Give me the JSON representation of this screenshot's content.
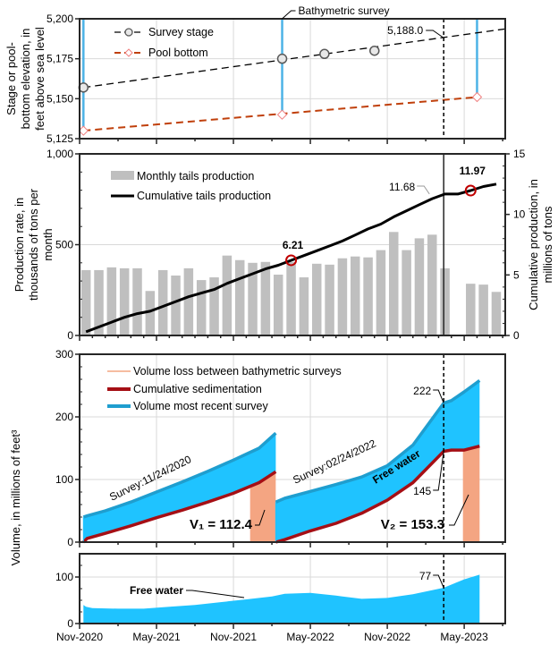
{
  "chart_data": [
    {
      "id": "elevation",
      "type": "scatter",
      "ylabel": "Stage or pool-bottom elevation, in feet above sea level",
      "ylabel_lines": [
        "Stage or pool-",
        "bottom elevation, in",
        "feet above sea level"
      ],
      "ylim": [
        5125,
        5200
      ],
      "yticks": [
        5125,
        5150,
        5175,
        5200
      ],
      "ytick_labels": [
        "5,125",
        "5,150",
        "5,175",
        "5,200"
      ],
      "grid": true,
      "legend": "top-left",
      "series": [
        {
          "name": "Survey stage",
          "color": "#000000",
          "marker": "circle",
          "points": [
            [
              0.3,
              5157
            ],
            [
              15.8,
              5175
            ],
            [
              19.1,
              5178
            ],
            [
              23.0,
              5180
            ]
          ]
        },
        {
          "name": "Pool bottom",
          "color": "#c0400c",
          "marker": "diamond",
          "points": [
            [
              0.3,
              5130
            ],
            [
              15.8,
              5140
            ],
            [
              31.0,
              5151
            ]
          ]
        }
      ],
      "stage_trend": {
        "x": [
          0.3,
          33.5
        ],
        "y": [
          5157,
          5194
        ]
      },
      "pool_trend": {
        "x": [
          0.3,
          31.0
        ],
        "y": [
          5130,
          5151
        ]
      },
      "survey_lines_x": [
        0.3,
        15.8,
        31.0
      ],
      "annotations": [
        {
          "text": "Bathymetric survey",
          "x": 15.8
        },
        {
          "text": "5,188.0",
          "x": 28.4,
          "y": 5188.0
        }
      ],
      "dashed_line_x": 28.4
    },
    {
      "id": "production",
      "type": "bar",
      "ylabel": "Production rate, in thousands of tons per month",
      "ylabel_lines": [
        "Production rate, in",
        "thousands of tons per",
        "month"
      ],
      "y2label": "Cumulative production, in millions of tons",
      "y2label_lines": [
        "Cumulative production, in",
        "millions of tons"
      ],
      "ylim": [
        0,
        1000
      ],
      "yticks": [
        0,
        500,
        1000
      ],
      "ytick_labels": [
        "0",
        "500",
        "1,000"
      ],
      "y2lim": [
        0,
        15
      ],
      "y2ticks": [
        0,
        5,
        10,
        15
      ],
      "y2tick_labels": [
        "0",
        "5",
        "10",
        "15"
      ],
      "legend": "top-left",
      "series": [
        {
          "name": "Monthly tails production",
          "color": "#bfbfbf",
          "x": [
            0,
            1,
            2,
            3,
            4,
            5,
            6,
            7,
            8,
            9,
            10,
            11,
            12,
            13,
            14,
            15,
            16,
            17,
            18,
            19,
            20,
            21,
            22,
            23,
            24,
            25,
            26,
            27,
            28,
            30,
            31,
            32
          ],
          "values": [
            360,
            360,
            375,
            370,
            370,
            245,
            360,
            330,
            370,
            305,
            320,
            440,
            415,
            400,
            405,
            335,
            405,
            320,
            395,
            390,
            425,
            435,
            430,
            470,
            570,
            470,
            535,
            555,
            370,
            285,
            280,
            240
          ]
        },
        {
          "name": "Cumulative tails production",
          "color": "#000000",
          "x": [
            0,
            1,
            2,
            3,
            4,
            5,
            6,
            7,
            8,
            9,
            10,
            11,
            12,
            13,
            14,
            15,
            16,
            17,
            18,
            19,
            20,
            21,
            22,
            23,
            24,
            25,
            26,
            27,
            28,
            29,
            30,
            31,
            32
          ],
          "values": [
            0.3,
            0.7,
            1.1,
            1.5,
            1.8,
            2.0,
            2.4,
            2.8,
            3.2,
            3.5,
            3.8,
            4.3,
            4.7,
            5.1,
            5.5,
            5.8,
            6.21,
            6.6,
            7.0,
            7.4,
            7.8,
            8.3,
            8.8,
            9.2,
            9.8,
            10.3,
            10.8,
            11.3,
            11.68,
            11.68,
            11.97,
            12.3,
            12.5
          ]
        }
      ],
      "annotations": [
        {
          "text": "6.21",
          "x": 16,
          "y": 6.21,
          "bold": true
        },
        {
          "text": "11.68",
          "x": 28.4,
          "y": 11.68,
          "bold": false
        },
        {
          "text": "11.97",
          "x": 30,
          "y": 11.97,
          "bold": true
        }
      ],
      "solid_line_x": 28.4
    },
    {
      "id": "volume",
      "type": "area",
      "ylabel": "Volume, in millions of feet³",
      "ylim": [
        0,
        300
      ],
      "yticks": [
        0,
        100,
        200,
        300
      ],
      "ytick_labels": [
        "0",
        "100",
        "200",
        "300"
      ],
      "legend": "top-left",
      "series": [
        {
          "name": "Volume loss between bathymetric surveys",
          "color": "#f4a582"
        },
        {
          "name": "Cumulative sedimentation",
          "color": "#a50f15"
        },
        {
          "name": "Volume most recent survey",
          "color": "#1f9ecf"
        }
      ],
      "segments": [
        {
          "survey_label": "Survey:11/24/2020",
          "x": [
            0.3,
            0.6,
            2,
            4,
            6,
            8,
            10,
            12,
            14,
            15.3
          ],
          "survey_volume": [
            40,
            42,
            50,
            64,
            80,
            96,
            113,
            131,
            150,
            174
          ],
          "sedimentation": [
            0,
            6,
            14,
            26,
            39,
            51,
            64,
            78,
            95,
            112.4
          ]
        },
        {
          "survey_label": "Survey:02/24/2022",
          "x": [
            15.3,
            16,
            18,
            20,
            22,
            24,
            26,
            28.4,
            29,
            30,
            31.2
          ],
          "survey_volume": [
            64,
            70,
            81,
            92,
            104,
            122,
            155,
            222,
            226,
            240,
            258
          ],
          "sedimentation": [
            0,
            4,
            18,
            30,
            46,
            67,
            95,
            145,
            147,
            147,
            153.3
          ]
        }
      ],
      "volume_loss_bars": [
        {
          "x0": 13.3,
          "x1": 15.3,
          "value": 112.4
        },
        {
          "x0": 29.9,
          "x1": 31.2,
          "value": 153.3
        }
      ],
      "annotations": [
        {
          "text": "V₁ = 112.4",
          "bold": true
        },
        {
          "text": "V₂ = 153.3",
          "bold": true
        },
        {
          "text": "222",
          "x": 28.4,
          "y": 222
        },
        {
          "text": "145",
          "x": 28.4,
          "y": 145
        },
        {
          "text": "Free water",
          "bold": true
        }
      ],
      "dashed_line_x": 28.4
    },
    {
      "id": "free-water",
      "type": "area",
      "ylim": [
        0,
        150
      ],
      "yticks": [
        0,
        100
      ],
      "ytick_labels": [
        "0",
        "100"
      ],
      "color": "#1fc3ff",
      "x": [
        0.3,
        0.5,
        1,
        3,
        5,
        7,
        9,
        11,
        13,
        15,
        16,
        18,
        20,
        22,
        24,
        26,
        28.4,
        30,
        31.2
      ],
      "values": [
        40,
        36,
        33,
        32,
        32,
        36,
        40,
        46,
        52,
        58,
        64,
        66,
        60,
        53,
        55,
        63,
        77,
        95,
        105
      ],
      "annotations": [
        {
          "text": "Free water",
          "bold": true
        },
        {
          "text": "77",
          "x": 28.4,
          "y": 77
        }
      ],
      "dashed_line_x": 28.4
    }
  ],
  "x_axis": {
    "unit": "months since Nov-2020",
    "xlim": [
      0,
      33.2
    ],
    "tick_labels": [
      "Nov-2020",
      "May-2021",
      "Nov-2021",
      "May-2022",
      "Nov-2022",
      "May-2023"
    ],
    "tick_positions": [
      0,
      6,
      12,
      18,
      24,
      30
    ]
  }
}
